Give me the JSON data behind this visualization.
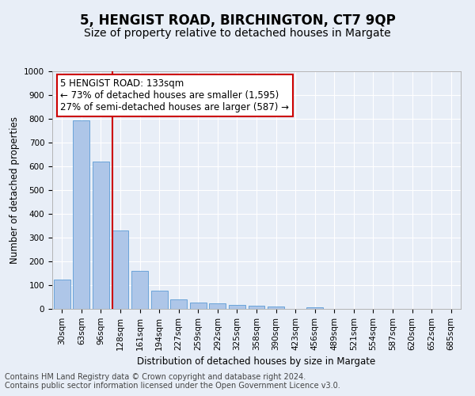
{
  "title": "5, HENGIST ROAD, BIRCHINGTON, CT7 9QP",
  "subtitle": "Size of property relative to detached houses in Margate",
  "xlabel": "Distribution of detached houses by size in Margate",
  "ylabel": "Number of detached properties",
  "bar_categories": [
    "30sqm",
    "63sqm",
    "96sqm",
    "128sqm",
    "161sqm",
    "194sqm",
    "227sqm",
    "259sqm",
    "292sqm",
    "325sqm",
    "358sqm",
    "390sqm",
    "423sqm",
    "456sqm",
    "489sqm",
    "521sqm",
    "554sqm",
    "587sqm",
    "620sqm",
    "652sqm",
    "685sqm"
  ],
  "bar_values": [
    125,
    795,
    620,
    330,
    160,
    78,
    40,
    27,
    25,
    18,
    12,
    10,
    0,
    8,
    0,
    0,
    0,
    0,
    0,
    0,
    0
  ],
  "bar_color": "#aec6e8",
  "bar_edge_color": "#5b9bd5",
  "vline_x_index": 3,
  "vline_color": "#cc0000",
  "annotation_text": "5 HENGIST ROAD: 133sqm\n← 73% of detached houses are smaller (1,595)\n27% of semi-detached houses are larger (587) →",
  "annotation_box_color": "#ffffff",
  "annotation_box_edge_color": "#cc0000",
  "ylim": [
    0,
    1000
  ],
  "yticks": [
    0,
    100,
    200,
    300,
    400,
    500,
    600,
    700,
    800,
    900,
    1000
  ],
  "footer_text": "Contains HM Land Registry data © Crown copyright and database right 2024.\nContains public sector information licensed under the Open Government Licence v3.0.",
  "background_color": "#e8eef7",
  "grid_color": "#ffffff",
  "title_fontsize": 12,
  "subtitle_fontsize": 10,
  "axis_label_fontsize": 8.5,
  "tick_fontsize": 7.5,
  "annotation_fontsize": 8.5,
  "footer_fontsize": 7
}
